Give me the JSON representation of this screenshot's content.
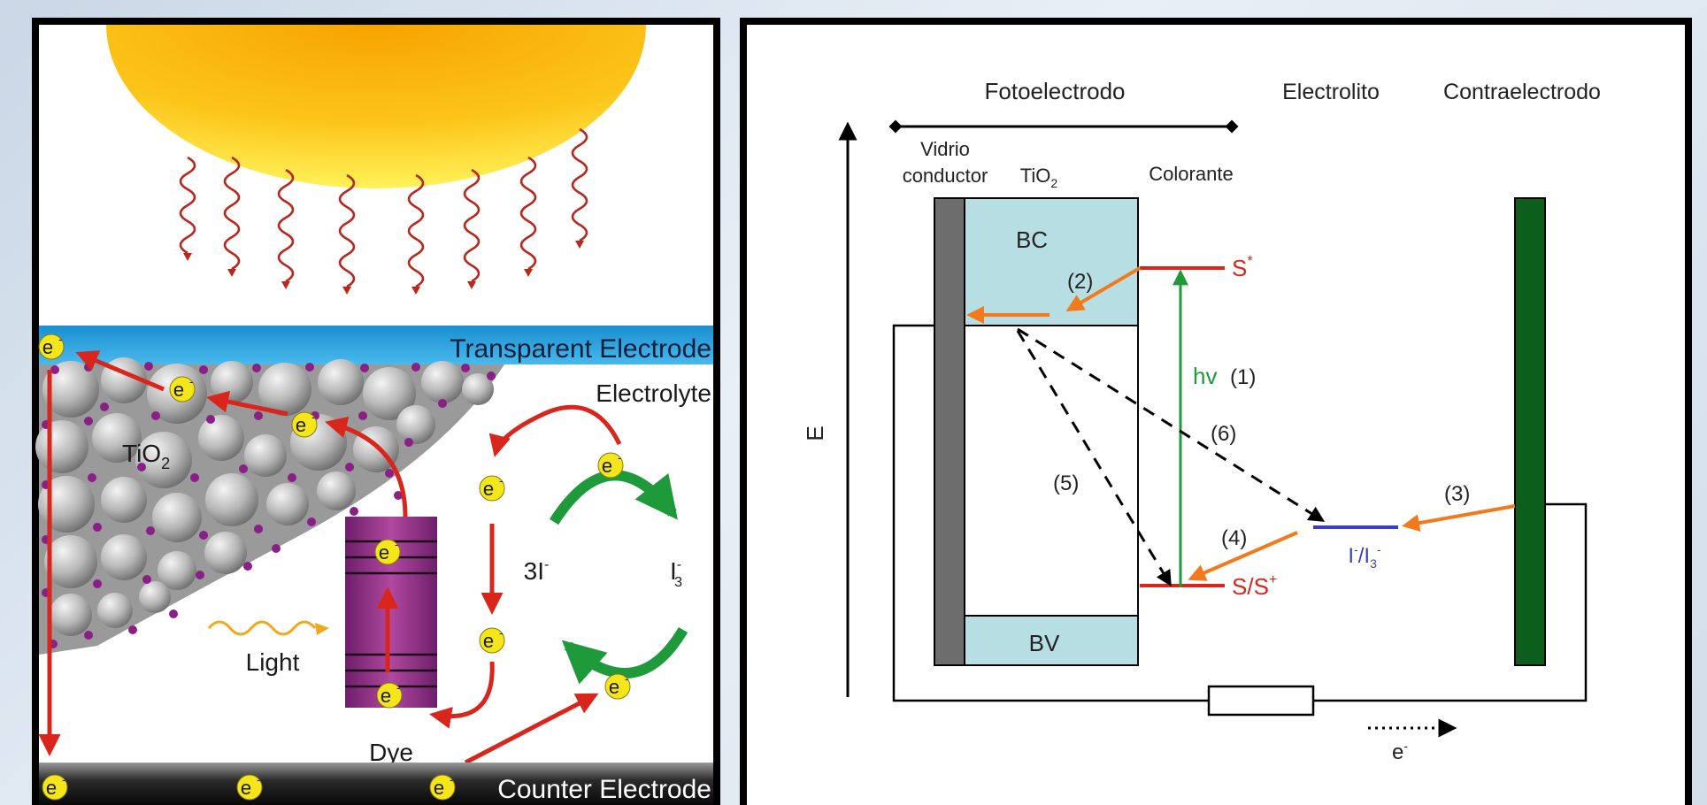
{
  "left_panel": {
    "transparent_electrode_label": "Transparent Electrode",
    "counter_electrode_label": "Counter Electrode",
    "electrolyte_label": "Electrolyte",
    "tio2_main": "TiO",
    "tio2_sub": "2",
    "light_label": "Light",
    "dye_label": "Dye",
    "iodide_label": "3I",
    "iodide_sup": "-",
    "triiodide_main": "I",
    "triiodide_sub": "3",
    "triiodide_sup": "-",
    "electron_main": "e",
    "electron_sup": "-"
  },
  "right_panel": {
    "fotoelectrodo_label": "Fotoelectrodo",
    "electrolito_label": "Electrolito",
    "contraelectrodo_label": "Contraelectrodo",
    "vidrio_line1": "Vidrio",
    "vidrio_line2": "conductor",
    "tio2_main": "TiO",
    "tio2_sub": "2",
    "colorante_label": "Colorante",
    "bc_label": "BC",
    "bv_label": "BV",
    "s_star_main": "S",
    "s_star_sup": "*",
    "s_plus_main": "S/S",
    "s_plus_sup": "+",
    "hv_label": "hv",
    "step1": "(1)",
    "step2": "(2)",
    "step3": "(3)",
    "step4": "(4)",
    "step5": "(5)",
    "step6": "(6)",
    "redox_i": "I",
    "redox_sup1": "-",
    "redox_slash": "/I",
    "redox_sub": "3",
    "redox_sup2": "-",
    "energy_axis_label": "E",
    "electron_main": "e",
    "electron_sup": "-"
  },
  "colors": {
    "electrode_blue": "#29a3dc",
    "arrow_red": "#d9261c",
    "arrow_green": "#1f9a3a",
    "arrow_orange": "#f27a1a",
    "band_fill": "#b7dfe3",
    "counter_electrode_green": "#0b5e1c",
    "redox_blue": "#3a3fbf",
    "dye_purple": "#9b2d8f",
    "electron_yellow": "#f4e61a"
  }
}
